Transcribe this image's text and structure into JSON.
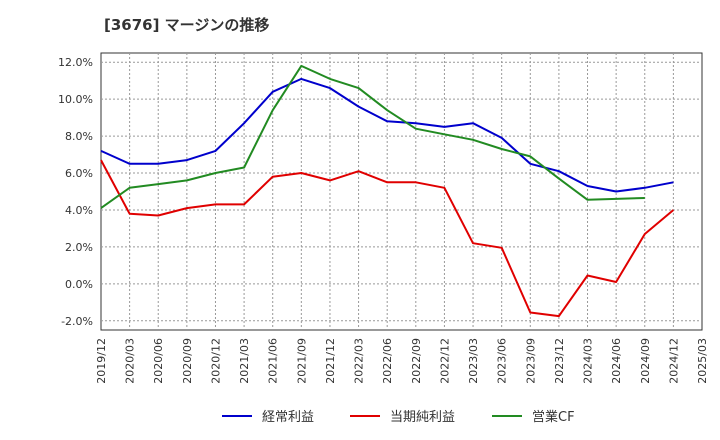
{
  "chart_data": {
    "type": "line",
    "title": "[3676]  マージンの推移",
    "x": [
      "2019/12",
      "2020/03",
      "2020/06",
      "2020/09",
      "2020/12",
      "2021/03",
      "2021/06",
      "2021/09",
      "2021/12",
      "2022/03",
      "2022/06",
      "2022/09",
      "2022/12",
      "2023/03",
      "2023/06",
      "2023/09",
      "2023/12",
      "2024/03",
      "2024/06",
      "2024/09",
      "2024/12",
      "2025/03"
    ],
    "y_ticks": [
      "12.0%",
      "10.0%",
      "8.0%",
      "6.0%",
      "4.0%",
      "2.0%",
      "0.0%",
      "-2.0%"
    ],
    "ylim": [
      -2.5,
      12.5
    ],
    "grid": true,
    "legend_position": "bottom",
    "series": [
      {
        "name": "経常利益",
        "color": "#0000cc",
        "values": [
          7.2,
          6.5,
          6.5,
          6.7,
          7.2,
          8.7,
          10.4,
          11.1,
          10.6,
          9.6,
          8.8,
          8.7,
          8.5,
          8.7,
          7.9,
          6.5,
          6.1,
          5.3,
          5.0,
          5.2,
          5.5,
          null
        ]
      },
      {
        "name": "当期純利益",
        "color": "#e00000",
        "values": [
          6.7,
          3.8,
          3.7,
          4.1,
          4.3,
          4.3,
          5.8,
          6.0,
          5.6,
          6.1,
          5.5,
          5.5,
          5.2,
          2.2,
          1.95,
          -1.55,
          -1.75,
          0.45,
          0.1,
          2.7,
          4.0,
          null
        ]
      },
      {
        "name": "営業CF",
        "color": "#228b22",
        "values": [
          4.1,
          5.2,
          5.4,
          5.6,
          6.0,
          6.3,
          9.4,
          11.8,
          11.1,
          10.6,
          9.4,
          8.4,
          8.1,
          7.8,
          7.3,
          6.9,
          5.7,
          4.55,
          4.6,
          4.65,
          null,
          null
        ]
      }
    ]
  }
}
